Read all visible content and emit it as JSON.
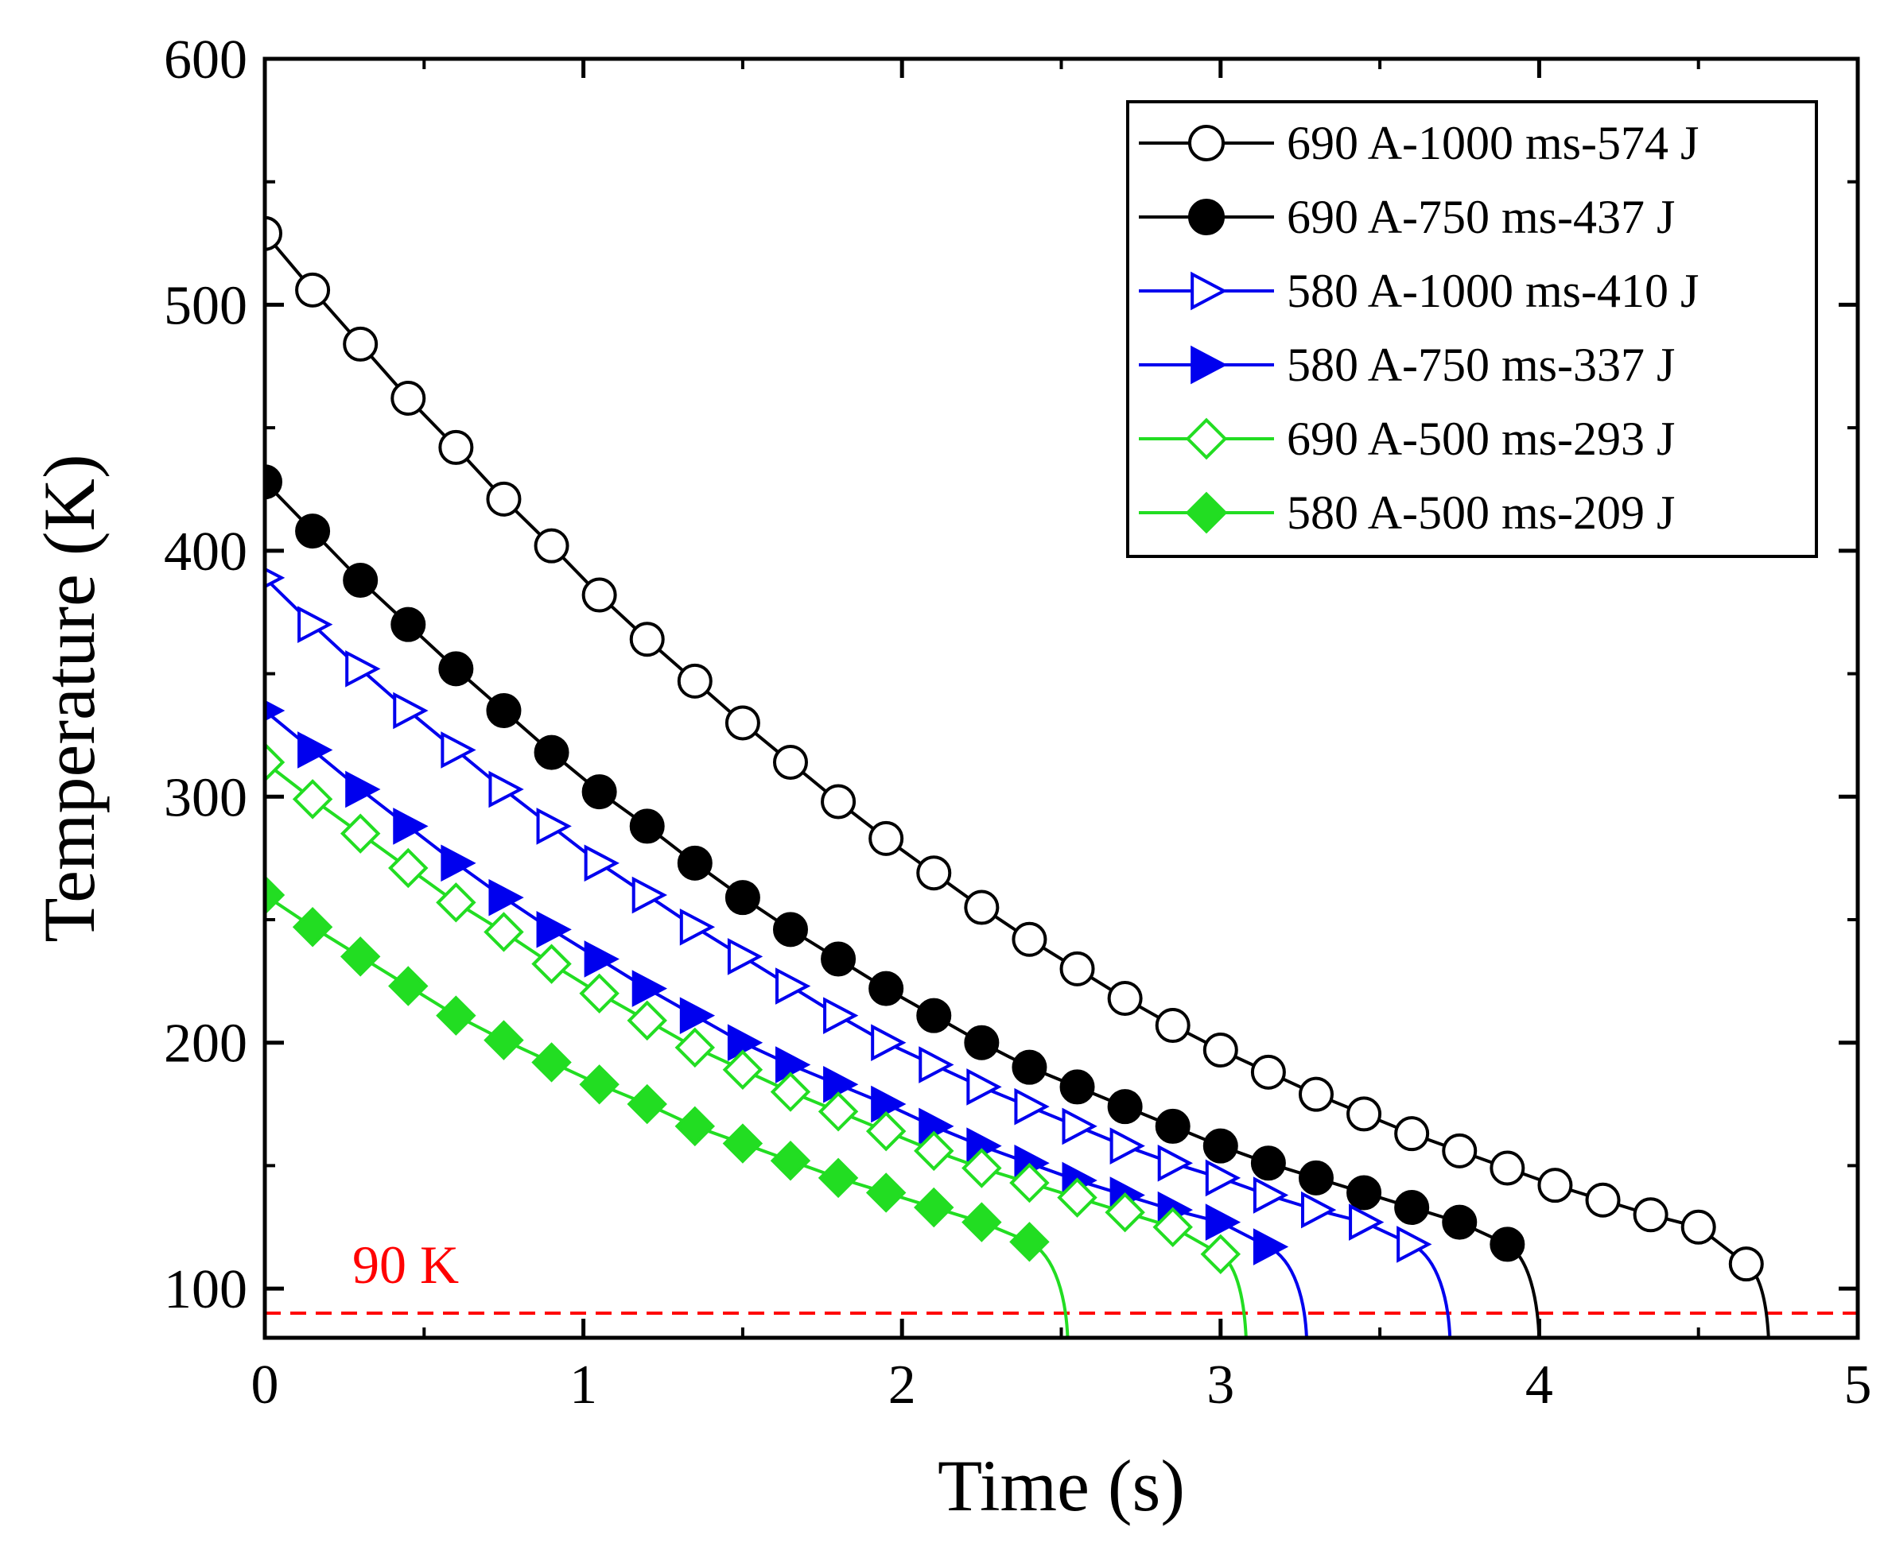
{
  "chart_data": {
    "type": "line",
    "xlabel": "Time (s)",
    "ylabel": "Temperature (K)",
    "xlim": [
      0,
      5
    ],
    "ylim": [
      80,
      600
    ],
    "xticks": [
      0,
      1,
      2,
      3,
      4,
      5
    ],
    "yticks": [
      100,
      200,
      300,
      400,
      500,
      600
    ],
    "grid": false,
    "legend_position": "top-right",
    "reference_line": {
      "y": 90,
      "label": "90 K",
      "color": "#ff0000",
      "style": "dashed"
    },
    "series": [
      {
        "name": "690 A-1000 ms-574 J",
        "color": "#000000",
        "marker": "circle",
        "filled": false,
        "marker_x": [
          0,
          0.15,
          0.3,
          0.45,
          0.6,
          0.75,
          0.9,
          1.05,
          1.2,
          1.35,
          1.5,
          1.65,
          1.8,
          1.95,
          2.1,
          2.25,
          2.4,
          2.55,
          2.7,
          2.85,
          3.0,
          3.15,
          3.3,
          3.45,
          3.6,
          3.75,
          3.9,
          4.05,
          4.2,
          4.35,
          4.5,
          4.65
        ],
        "marker_y": [
          529,
          506,
          484,
          462,
          442,
          421,
          402,
          382,
          364,
          347,
          330,
          314,
          298,
          283,
          269,
          255,
          242,
          230,
          218,
          207,
          197,
          188,
          179,
          171,
          163,
          156,
          149,
          142,
          136,
          130,
          125,
          110
        ],
        "end_x": 4.72,
        "end_y": 80
      },
      {
        "name": "690 A-750 ms-437 J",
        "color": "#000000",
        "marker": "circle",
        "filled": true,
        "marker_x": [
          0,
          0.15,
          0.3,
          0.45,
          0.6,
          0.75,
          0.9,
          1.05,
          1.2,
          1.35,
          1.5,
          1.65,
          1.8,
          1.95,
          2.1,
          2.25,
          2.4,
          2.55,
          2.7,
          2.85,
          3.0,
          3.15,
          3.3,
          3.45,
          3.6,
          3.75,
          3.9
        ],
        "marker_y": [
          428,
          408,
          388,
          370,
          352,
          335,
          318,
          302,
          288,
          273,
          259,
          246,
          234,
          222,
          211,
          200,
          190,
          182,
          174,
          166,
          158,
          151,
          145,
          139,
          133,
          127,
          118
        ],
        "end_x": 4.0,
        "end_y": 80
      },
      {
        "name": "580 A-1000 ms-410 J",
        "color": "#0000ee",
        "marker": "triangle-right",
        "filled": false,
        "marker_x": [
          0,
          0.15,
          0.3,
          0.45,
          0.6,
          0.75,
          0.9,
          1.05,
          1.2,
          1.35,
          1.5,
          1.65,
          1.8,
          1.95,
          2.1,
          2.25,
          2.4,
          2.55,
          2.7,
          2.85,
          3.0,
          3.15,
          3.3,
          3.45,
          3.6
        ],
        "marker_y": [
          389,
          370,
          352,
          335,
          319,
          303,
          288,
          273,
          260,
          247,
          235,
          223,
          211,
          200,
          191,
          182,
          174,
          166,
          158,
          151,
          145,
          138,
          132,
          127,
          118
        ],
        "end_x": 3.72,
        "end_y": 80
      },
      {
        "name": "580 A-750 ms-337 J",
        "color": "#0000ee",
        "marker": "triangle-right",
        "filled": true,
        "marker_x": [
          0,
          0.15,
          0.3,
          0.45,
          0.6,
          0.75,
          0.9,
          1.05,
          1.2,
          1.35,
          1.5,
          1.65,
          1.8,
          1.95,
          2.1,
          2.25,
          2.4,
          2.55,
          2.7,
          2.85,
          3.0,
          3.15
        ],
        "marker_y": [
          335,
          319,
          303,
          288,
          273,
          259,
          246,
          234,
          222,
          211,
          200,
          191,
          183,
          175,
          166,
          158,
          151,
          144,
          138,
          132,
          127,
          117
        ],
        "end_x": 3.27,
        "end_y": 80
      },
      {
        "name": "690 A-500 ms-293 J",
        "color": "#22dd22",
        "marker": "diamond",
        "filled": false,
        "marker_x": [
          0,
          0.15,
          0.3,
          0.45,
          0.6,
          0.75,
          0.9,
          1.05,
          1.2,
          1.35,
          1.5,
          1.65,
          1.8,
          1.95,
          2.1,
          2.25,
          2.4,
          2.55,
          2.7,
          2.85,
          3.0
        ],
        "marker_y": [
          314,
          299,
          285,
          271,
          257,
          245,
          232,
          220,
          209,
          198,
          189,
          180,
          172,
          164,
          156,
          149,
          143,
          137,
          131,
          125,
          114
        ],
        "end_x": 3.08,
        "end_y": 80
      },
      {
        "name": "580 A-500 ms-209 J",
        "color": "#22dd22",
        "marker": "diamond",
        "filled": true,
        "marker_x": [
          0,
          0.15,
          0.3,
          0.45,
          0.6,
          0.75,
          0.9,
          1.05,
          1.2,
          1.35,
          1.5,
          1.65,
          1.8,
          1.95,
          2.1,
          2.25,
          2.4
        ],
        "marker_y": [
          260,
          247,
          235,
          223,
          211,
          201,
          192,
          183,
          175,
          166,
          159,
          152,
          145,
          139,
          133,
          127,
          119
        ],
        "end_x": 2.52,
        "end_y": 80
      }
    ]
  }
}
